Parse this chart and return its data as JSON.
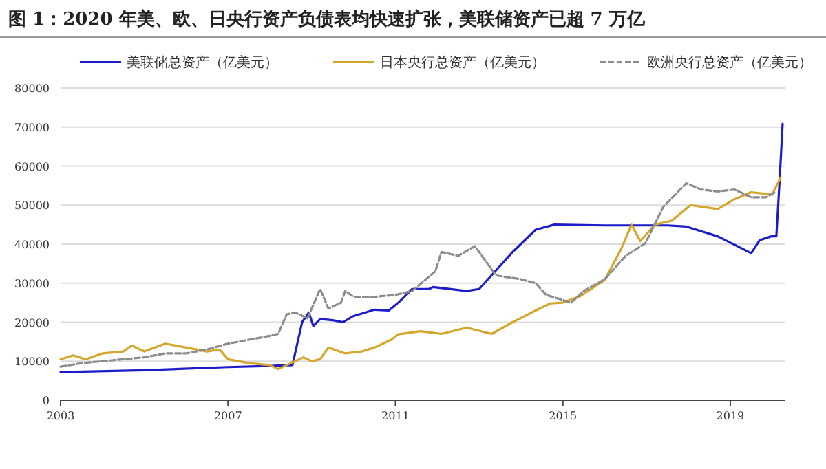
{
  "chart_data": {
    "type": "line",
    "title": "图 1：2020 年美、欧、日央行资产负债表均快速扩张，美联储资产已超 7 万亿",
    "xlim": [
      2003,
      2020.3
    ],
    "xticks": [
      2003,
      2007,
      2011,
      2015,
      2019
    ],
    "ylim": [
      0,
      80000
    ],
    "yticks": [
      0,
      10000,
      20000,
      30000,
      40000,
      50000,
      60000,
      70000,
      80000
    ],
    "grid": "y",
    "legend": "top",
    "series": [
      {
        "name": "美联储总资产（亿美元）",
        "color": "#1c1cc8",
        "line_style": "solid",
        "x": [
          2003,
          2005,
          2007,
          2008,
          2008.54,
          2008.77,
          2008.93,
          2009.04,
          2009.2,
          2009.5,
          2009.75,
          2009.98,
          2010.5,
          2010.84,
          2011.07,
          2011.4,
          2011.8,
          2011.9,
          2012.7,
          2013.0,
          2013.8,
          2014.35,
          2014.8,
          2016,
          2017.5,
          2017.95,
          2018.7,
          2019.5,
          2019.7,
          2019.98,
          2020.1,
          2020.18,
          2020.25
        ],
        "values": [
          7200,
          7700,
          8500,
          8800,
          9000,
          20000,
          22500,
          19000,
          20800,
          20500,
          20000,
          21500,
          23200,
          23000,
          25000,
          28500,
          28500,
          29000,
          28000,
          28500,
          38000,
          43700,
          45000,
          44800,
          44800,
          44500,
          42000,
          37700,
          41000,
          42000,
          42000,
          56700,
          70800
        ]
      },
      {
        "name": "日本央行总资产（亿美元）",
        "color": "#d4a62a",
        "line_style": "solid",
        "x": [
          2003,
          2003.3,
          2003.6,
          2004,
          2004.5,
          2004.7,
          2005,
          2005.5,
          2006,
          2006.5,
          2006.8,
          2007,
          2007.5,
          2008,
          2008.2,
          2008.5,
          2008.8,
          2009,
          2009.2,
          2009.4,
          2009.8,
          2010.2,
          2010.5,
          2010.9,
          2011.07,
          2011.6,
          2012.1,
          2012.7,
          2013.3,
          2013.8,
          2014.35,
          2014.7,
          2015,
          2015.4,
          2016,
          2016.4,
          2016.64,
          2016.85,
          2017.2,
          2017.6,
          2018.05,
          2018.7,
          2019.1,
          2019.5,
          2020,
          2020.2
        ],
        "values": [
          10500,
          11500,
          10500,
          12000,
          12500,
          14000,
          12500,
          14500,
          13500,
          12500,
          13000,
          10500,
          9500,
          9000,
          8000,
          9500,
          11000,
          10000,
          10500,
          13500,
          12000,
          12500,
          13500,
          15500,
          16900,
          17700,
          17000,
          18600,
          17000,
          20000,
          23000,
          24800,
          25000,
          26600,
          30800,
          38900,
          45000,
          40800,
          45000,
          46000,
          50000,
          49000,
          51500,
          53300,
          52700,
          57000
        ]
      },
      {
        "name": "欧洲央行总资产（亿美元）",
        "color": "#8c8c8c",
        "line_style": "dashed",
        "x": [
          2003,
          2003.5,
          2004,
          2004.5,
          2005,
          2005.5,
          2006,
          2006.5,
          2007,
          2007.5,
          2008,
          2008.2,
          2008.4,
          2008.6,
          2008.9,
          2009.1,
          2009.2,
          2009.4,
          2009.7,
          2009.8,
          2010,
          2010.5,
          2011,
          2011.4,
          2011.95,
          2012.1,
          2012.5,
          2012.9,
          2013,
          2013.4,
          2014,
          2014.35,
          2014.6,
          2015.2,
          2015.5,
          2016,
          2016.5,
          2016.97,
          2017.4,
          2017.95,
          2018.3,
          2018.7,
          2019.1,
          2019.5,
          2019.85,
          2020.1
        ],
        "values": [
          8600,
          9500,
          10000,
          10500,
          11000,
          12000,
          12000,
          13000,
          14500,
          15500,
          16500,
          17000,
          22000,
          22500,
          21000,
          26000,
          28500,
          23500,
          25000,
          28000,
          26500,
          26500,
          27000,
          28000,
          33000,
          38000,
          37000,
          39500,
          38000,
          32000,
          31000,
          30000,
          27000,
          25000,
          28000,
          31000,
          37000,
          40200,
          49600,
          55600,
          54000,
          53500,
          54000,
          52000,
          52000,
          53500
        ]
      }
    ]
  }
}
